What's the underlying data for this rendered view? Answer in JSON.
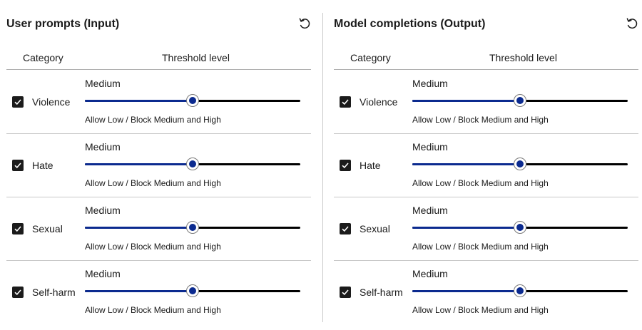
{
  "accent_color": "#0b2a8f",
  "input_panel": {
    "title": "User prompts (Input)",
    "reset_icon": "reset-icon",
    "columns": {
      "category": "Category",
      "threshold": "Threshold level"
    },
    "rows": [
      {
        "category": "Violence",
        "checked": true,
        "level": "Medium",
        "slider_value_percent": 50,
        "description": "Allow Low / Block Medium and High"
      },
      {
        "category": "Hate",
        "checked": true,
        "level": "Medium",
        "slider_value_percent": 50,
        "description": "Allow Low / Block Medium and High"
      },
      {
        "category": "Sexual",
        "checked": true,
        "level": "Medium",
        "slider_value_percent": 50,
        "description": "Allow Low / Block Medium and High"
      },
      {
        "category": "Self-harm",
        "checked": true,
        "level": "Medium",
        "slider_value_percent": 50,
        "description": "Allow Low / Block Medium and High"
      }
    ]
  },
  "output_panel": {
    "title": "Model completions (Output)",
    "reset_icon": "reset-icon",
    "columns": {
      "category": "Category",
      "threshold": "Threshold level"
    },
    "rows": [
      {
        "category": "Violence",
        "checked": true,
        "level": "Medium",
        "slider_value_percent": 50,
        "description": "Allow Low / Block Medium and High"
      },
      {
        "category": "Hate",
        "checked": true,
        "level": "Medium",
        "slider_value_percent": 50,
        "description": "Allow Low / Block Medium and High"
      },
      {
        "category": "Sexual",
        "checked": true,
        "level": "Medium",
        "slider_value_percent": 50,
        "description": "Allow Low / Block Medium and High"
      },
      {
        "category": "Self-harm",
        "checked": true,
        "level": "Medium",
        "slider_value_percent": 50,
        "description": "Allow Low / Block Medium and High"
      }
    ]
  }
}
